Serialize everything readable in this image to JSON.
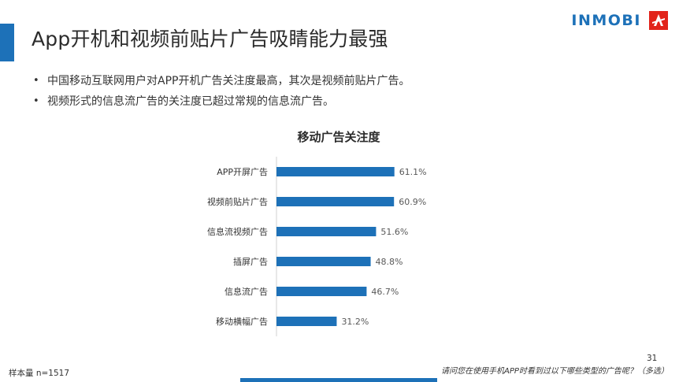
{
  "slide": {
    "title": "App开机和视频前贴片广告吸睛能力最强",
    "bullets": [
      "中国移动互联网用户对APP开机广告关注度最高，其次是视频前贴片广告。",
      "视频形式的信息流广告的关注度已超过常规的信息流广告。"
    ],
    "sample_size": "样本量 n=1517",
    "question": "请问您在使用手机APP时看到过以下哪些类型的广告呢？（多选）",
    "page_number": "31"
  },
  "logo": {
    "text": "INMOBI",
    "brand_color": "#1d71b8",
    "mark_color": "#e2231a"
  },
  "colors": {
    "bar": "#1d71b8",
    "accent": "#1d71b8"
  },
  "chart_data": {
    "type": "bar",
    "orientation": "horizontal",
    "title": "移动广告关注度",
    "categories": [
      "APP开屏广告",
      "视频前贴片广告",
      "信息流视频广告",
      "插屏广告",
      "信息流广告",
      "移动横幅广告"
    ],
    "values": [
      61.1,
      60.9,
      51.6,
      48.8,
      46.7,
      31.2
    ],
    "value_labels": [
      "61.1%",
      "60.9%",
      "51.6%",
      "48.8%",
      "46.7%",
      "31.2%"
    ],
    "unit": "%",
    "xlim": [
      0,
      100
    ],
    "grid": false,
    "legend": "none"
  }
}
